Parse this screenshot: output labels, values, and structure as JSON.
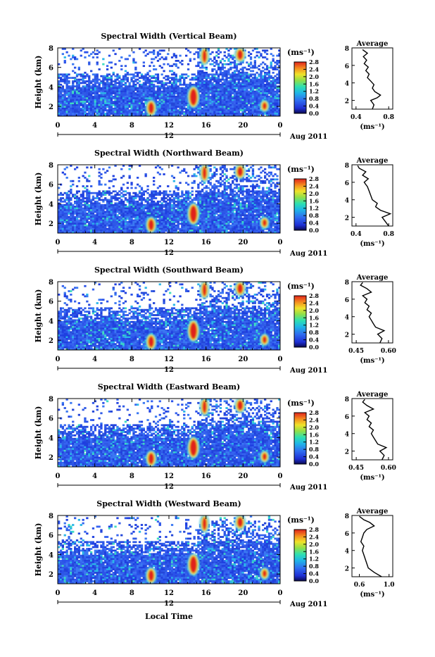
{
  "chart_data": [
    {
      "type": "heatmap",
      "title": "Spectral Width (Vertical Beam)",
      "ylabel": "Height (km)",
      "x_ticks": [
        "0",
        "4",
        "8",
        "12",
        "16",
        "20",
        "0"
      ],
      "x_midlabel": "12",
      "date_label": "Aug 2011",
      "y_ticks": [
        "2",
        "4",
        "6",
        "8"
      ],
      "colorbar": {
        "unit": "(ms⁻¹)",
        "ticks": [
          "0.0",
          "0.4",
          "0.8",
          "1.2",
          "1.6",
          "2.0",
          "2.4",
          "2.8"
        ]
      },
      "profile": {
        "title": "Average",
        "xlabel": "(ms⁻¹)",
        "x_ticks": [
          "0.4",
          "0.8"
        ],
        "y_ticks": [
          "2",
          "4",
          "6",
          "8"
        ],
        "xlim": [
          0.35,
          0.85
        ],
        "points": [
          [
            0.6,
            1.0
          ],
          [
            0.62,
            1.5
          ],
          [
            0.58,
            2.0
          ],
          [
            0.66,
            2.3
          ],
          [
            0.7,
            2.6
          ],
          [
            0.63,
            3.0
          ],
          [
            0.6,
            3.4
          ],
          [
            0.62,
            3.8
          ],
          [
            0.58,
            4.2
          ],
          [
            0.54,
            4.6
          ],
          [
            0.56,
            5.0
          ],
          [
            0.52,
            5.4
          ],
          [
            0.55,
            5.8
          ],
          [
            0.5,
            6.2
          ],
          [
            0.53,
            6.6
          ],
          [
            0.49,
            7.0
          ],
          [
            0.54,
            7.4
          ],
          [
            0.48,
            7.8
          ]
        ]
      }
    },
    {
      "type": "heatmap",
      "title": "Spectral Width (Northward Beam)",
      "ylabel": "Height (km)",
      "x_ticks": [
        "0",
        "4",
        "8",
        "12",
        "16",
        "20",
        "0"
      ],
      "x_midlabel": "12",
      "date_label": "Aug 2011",
      "y_ticks": [
        "2",
        "4",
        "6",
        "8"
      ],
      "colorbar": {
        "unit": "(ms⁻¹)",
        "ticks": [
          "0.0",
          "0.4",
          "0.8",
          "1.2",
          "1.6",
          "2.0",
          "2.4",
          "2.8"
        ]
      },
      "profile": {
        "title": "Average",
        "xlabel": "(ms⁻¹)",
        "x_ticks": [
          "0.4",
          "0.8"
        ],
        "y_ticks": [
          "2",
          "4",
          "6",
          "8"
        ],
        "xlim": [
          0.35,
          0.85
        ],
        "points": [
          [
            0.8,
            1.0
          ],
          [
            0.76,
            1.5
          ],
          [
            0.72,
            2.0
          ],
          [
            0.82,
            2.4
          ],
          [
            0.7,
            2.8
          ],
          [
            0.64,
            3.2
          ],
          [
            0.66,
            3.6
          ],
          [
            0.6,
            4.0
          ],
          [
            0.58,
            4.5
          ],
          [
            0.56,
            5.0
          ],
          [
            0.54,
            5.5
          ],
          [
            0.5,
            6.0
          ],
          [
            0.55,
            6.4
          ],
          [
            0.48,
            6.8
          ],
          [
            0.52,
            7.2
          ],
          [
            0.44,
            7.6
          ],
          [
            0.42,
            7.9
          ]
        ]
      }
    },
    {
      "type": "heatmap",
      "title": "Spectral Width (Southward Beam)",
      "ylabel": "Height (km)",
      "x_ticks": [
        "0",
        "4",
        "8",
        "12",
        "16",
        "20",
        "0"
      ],
      "x_midlabel": "12",
      "date_label": "Aug 2011",
      "y_ticks": [
        "2",
        "4",
        "6",
        "8"
      ],
      "colorbar": {
        "unit": "(ms⁻¹)",
        "ticks": [
          "0.0",
          "0.4",
          "0.8",
          "1.2",
          "1.6",
          "2.0",
          "2.4",
          "2.8"
        ]
      },
      "profile": {
        "title": "Average",
        "xlabel": "(ms⁻¹)",
        "x_ticks": [
          "0.45",
          "0.60"
        ],
        "y_ticks": [
          "2",
          "4",
          "6",
          "8"
        ],
        "xlim": [
          0.43,
          0.62
        ],
        "points": [
          [
            0.56,
            1.0
          ],
          [
            0.57,
            1.5
          ],
          [
            0.55,
            2.0
          ],
          [
            0.58,
            2.4
          ],
          [
            0.54,
            2.8
          ],
          [
            0.53,
            3.2
          ],
          [
            0.52,
            3.6
          ],
          [
            0.51,
            4.0
          ],
          [
            0.52,
            4.4
          ],
          [
            0.5,
            4.8
          ],
          [
            0.51,
            5.2
          ],
          [
            0.49,
            5.6
          ],
          [
            0.5,
            6.0
          ],
          [
            0.48,
            6.4
          ],
          [
            0.52,
            6.8
          ],
          [
            0.5,
            7.2
          ],
          [
            0.47,
            7.6
          ],
          [
            0.48,
            7.9
          ]
        ]
      }
    },
    {
      "type": "heatmap",
      "title": "Spectral Width (Eastward Beam)",
      "ylabel": "Height (km)",
      "x_ticks": [
        "0",
        "4",
        "8",
        "12",
        "16",
        "20",
        "0"
      ],
      "x_midlabel": "12",
      "date_label": "Aug 2011",
      "y_ticks": [
        "2",
        "4",
        "6",
        "8"
      ],
      "colorbar": {
        "unit": "(ms⁻¹)",
        "ticks": [
          "0.0",
          "0.4",
          "0.8",
          "1.2",
          "1.6",
          "2.0",
          "2.4",
          "2.8"
        ]
      },
      "profile": {
        "title": "Average",
        "xlabel": "(ms⁻¹)",
        "x_ticks": [
          "0.45",
          "0.60"
        ],
        "y_ticks": [
          "2",
          "4",
          "6",
          "8"
        ],
        "xlim": [
          0.43,
          0.62
        ],
        "points": [
          [
            0.57,
            1.0
          ],
          [
            0.58,
            1.5
          ],
          [
            0.56,
            2.0
          ],
          [
            0.59,
            2.4
          ],
          [
            0.55,
            2.8
          ],
          [
            0.54,
            3.2
          ],
          [
            0.53,
            3.6
          ],
          [
            0.52,
            4.0
          ],
          [
            0.53,
            4.4
          ],
          [
            0.51,
            4.8
          ],
          [
            0.52,
            5.2
          ],
          [
            0.5,
            5.6
          ],
          [
            0.51,
            6.0
          ],
          [
            0.49,
            6.4
          ],
          [
            0.53,
            6.8
          ],
          [
            0.5,
            7.2
          ],
          [
            0.48,
            7.6
          ],
          [
            0.49,
            7.9
          ]
        ]
      }
    },
    {
      "type": "heatmap",
      "title": "Spectral Width (Westward Beam)",
      "ylabel": "Height (km)",
      "x_ticks": [
        "0",
        "4",
        "8",
        "12",
        "16",
        "20",
        "0"
      ],
      "x_midlabel": "12",
      "date_label": "Aug 2011",
      "y_ticks": [
        "2",
        "4",
        "6",
        "8"
      ],
      "colorbar": {
        "unit": "(ms⁻¹)",
        "ticks": [
          "0.0",
          "0.4",
          "0.8",
          "1.2",
          "1.6",
          "2.0",
          "2.4",
          "2.8"
        ]
      },
      "profile": {
        "title": "Average",
        "xlabel": "(ms⁻¹)",
        "x_ticks": [
          "0.6",
          "1.0"
        ],
        "y_ticks": [
          "2",
          "4",
          "6",
          "8"
        ],
        "xlim": [
          0.5,
          1.05
        ],
        "points": [
          [
            0.9,
            1.0
          ],
          [
            0.8,
            1.5
          ],
          [
            0.72,
            2.0
          ],
          [
            0.7,
            2.5
          ],
          [
            0.68,
            3.0
          ],
          [
            0.66,
            3.5
          ],
          [
            0.64,
            4.0
          ],
          [
            0.66,
            4.5
          ],
          [
            0.62,
            5.0
          ],
          [
            0.64,
            5.5
          ],
          [
            0.66,
            6.0
          ],
          [
            0.7,
            6.4
          ],
          [
            0.8,
            6.8
          ],
          [
            0.74,
            7.2
          ],
          [
            0.66,
            7.5
          ],
          [
            0.6,
            7.9
          ]
        ]
      }
    }
  ],
  "common_xlabel": "Local Time"
}
